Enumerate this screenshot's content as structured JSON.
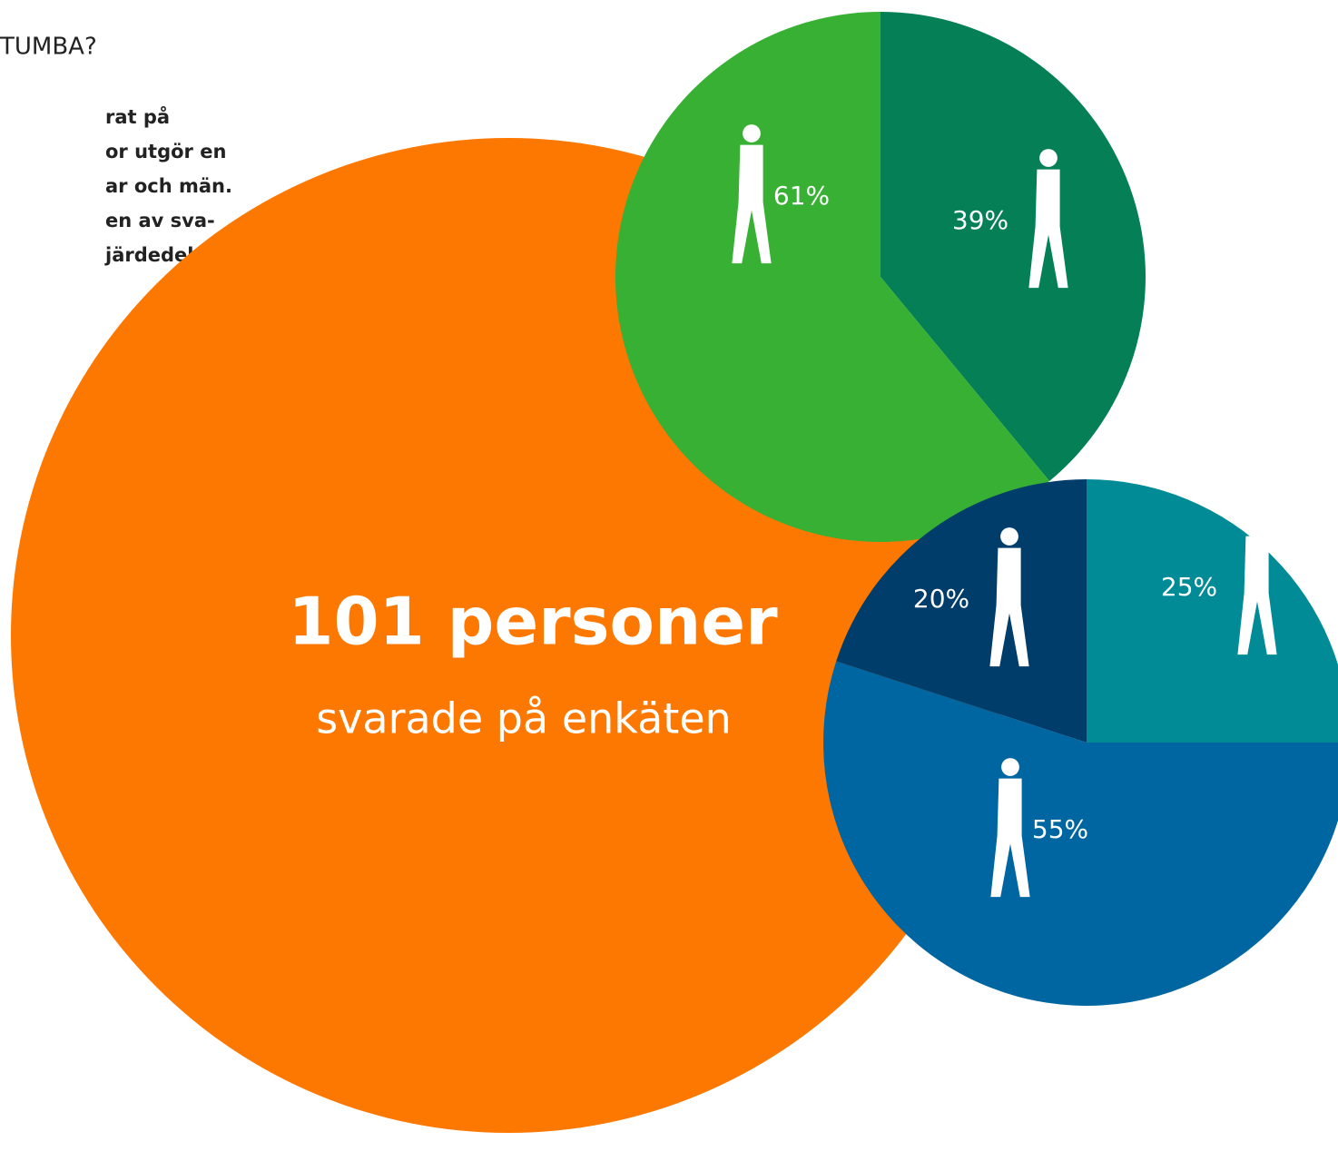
{
  "header": {
    "title": "TUMBA?",
    "lines": [
      "rat på",
      "or utgör en",
      "ar och män.",
      "en av sva-",
      "järdedel."
    ]
  },
  "total": {
    "number": "101 personer",
    "caption": "svarade på enkäten",
    "color": "#fd7800"
  },
  "chart_data": [
    {
      "type": "pie",
      "values": [
        39,
        61
      ],
      "value_labels": [
        "39%",
        "61%"
      ],
      "colors": [
        "#047f56",
        "#37b034"
      ]
    },
    {
      "type": "pie",
      "values": [
        25,
        55,
        20
      ],
      "value_labels": [
        "25%",
        "55%",
        "20%"
      ],
      "colors": [
        "#008b96",
        "#0066a1",
        "#003d6b"
      ]
    }
  ]
}
